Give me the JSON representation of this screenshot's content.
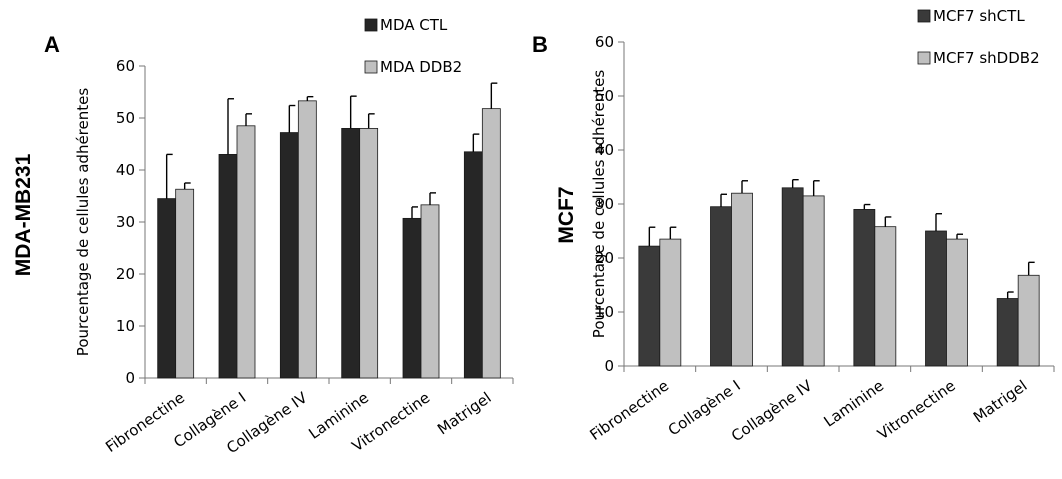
{
  "chart_data": [
    {
      "type": "bar",
      "panel_letter": "A",
      "cell_line": "MDA-MB231",
      "ylabel": "Pourcentage de cellules adhérentes",
      "categories": [
        "Fibronectine",
        "Collagène I",
        "Collagène IV",
        "Laminine",
        "Vitronectine",
        "Matrigel"
      ],
      "ylim": [
        0,
        60
      ],
      "yticks": [
        0,
        10,
        20,
        30,
        40,
        50,
        60
      ],
      "legend_position": "top-right",
      "grid": false,
      "series": [
        {
          "name": "MDA CTL",
          "color": "#262626",
          "values": [
            34.5,
            43.0,
            47.2,
            48.0,
            30.7,
            43.5
          ],
          "errors": [
            8.5,
            10.7,
            5.2,
            6.2,
            2.2,
            3.4
          ]
        },
        {
          "name": "MDA DDB2",
          "color": "#c0c0c0",
          "values": [
            36.3,
            48.5,
            53.3,
            48.0,
            33.3,
            51.8
          ],
          "errors": [
            1.2,
            2.3,
            0.8,
            2.8,
            2.3,
            4.9
          ]
        }
      ]
    },
    {
      "type": "bar",
      "panel_letter": "B",
      "cell_line": "MCF7",
      "ylabel": "Pourcentage de cellules adhérentes",
      "categories": [
        "Fibronectine",
        "Collagène I",
        "Collagène IV",
        "Laminine",
        "Vitronectine",
        "Matrigel"
      ],
      "ylim": [
        0,
        60
      ],
      "yticks": [
        0,
        10,
        20,
        30,
        40,
        50,
        60
      ],
      "legend_position": "top-right",
      "grid": false,
      "series": [
        {
          "name": "MCF7 shCTL",
          "color": "#3a3a3a",
          "values": [
            22.2,
            29.5,
            33.0,
            29.0,
            25.0,
            12.5
          ],
          "errors": [
            3.5,
            2.3,
            1.5,
            0.9,
            3.2,
            1.2
          ]
        },
        {
          "name": "MCF7 shDDB2",
          "color": "#c0c0c0",
          "values": [
            23.5,
            32.0,
            31.5,
            25.8,
            23.5,
            16.8
          ],
          "errors": [
            2.2,
            2.3,
            2.8,
            1.8,
            0.9,
            2.4
          ]
        }
      ]
    }
  ]
}
